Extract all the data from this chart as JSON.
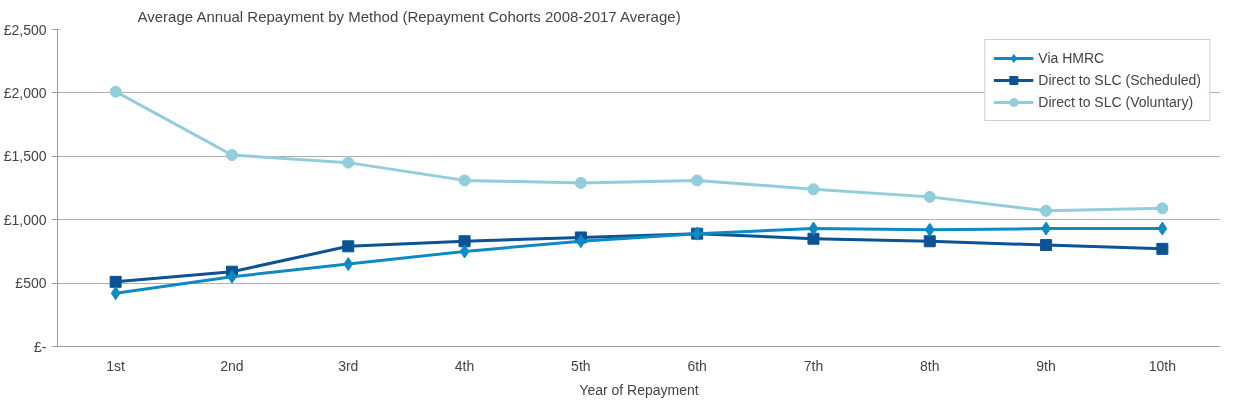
{
  "chart_data": {
    "type": "line",
    "title": "Average Annual Repayment by Method  (Repayment Cohorts 2008-2017 Average)",
    "xlabel": "Year of Repayment",
    "categories": [
      "1st",
      "2nd",
      "3rd",
      "4th",
      "5th",
      "6th",
      "7th",
      "8th",
      "9th",
      "10th"
    ],
    "series": [
      {
        "name": "Via HMRC",
        "color": "#0e8ac2",
        "marker": "diamond",
        "values": [
          420,
          550,
          650,
          750,
          830,
          890,
          930,
          920,
          930,
          930
        ]
      },
      {
        "name": "Direct to SLC (Scheduled)",
        "color": "#0b5394",
        "marker": "square",
        "values": [
          510,
          590,
          790,
          830,
          860,
          890,
          850,
          830,
          800,
          770
        ]
      },
      {
        "name": "Direct to SLC (Voluntary)",
        "color": "#92cddc",
        "marker": "circle",
        "values": [
          2010,
          1510,
          1450,
          1310,
          1290,
          1310,
          1240,
          1180,
          1070,
          1090
        ]
      }
    ],
    "ylim": [
      0,
      2500
    ],
    "yticks": [
      {
        "value": 0,
        "label": "£-"
      },
      {
        "value": 500,
        "label": "£500"
      },
      {
        "value": 1000,
        "label": "£1,000"
      },
      {
        "value": 1500,
        "label": "£1,500"
      },
      {
        "value": 2000,
        "label": "£2,000"
      },
      {
        "value": 2500,
        "label": "£2,500"
      }
    ],
    "grid": "y",
    "legend": "top right",
    "line_style": "solid"
  }
}
